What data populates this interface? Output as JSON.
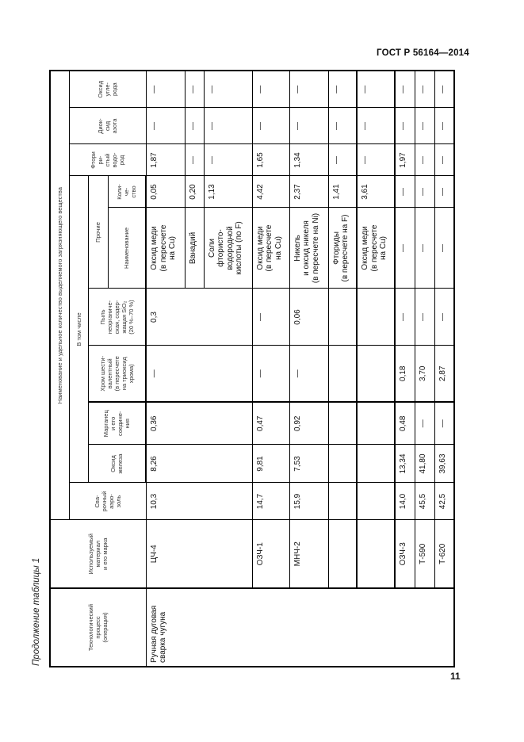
{
  "page": {
    "standard": "ГОСТ Р 56164—2014",
    "page_number": "11",
    "caption": "Продолжение таблицы 1"
  },
  "header": {
    "process": "Технологический\nпроцесс\n(операция)",
    "material": "Используемый\nматериал\nи его марка",
    "group": "Наименование и удельное количество выделяемого загрязняющего вещества",
    "aerosol": "Сва-\nрочный\nаэро-\nзоль",
    "including": "В том числе",
    "iron_oxide": "Оксид\nжелеза",
    "manganese": "Марганец\nи его\nсоедине-\nния",
    "chromium": "Хром шести-\nвалентный\n(в пересчете\nна триоксид\nхрома)",
    "dust": "Пыль\nнеорганиче-\nская, содер-\nжащая SiO₂\n(20 %–70 %)",
    "other": "Прочие",
    "other_name": "Наименование",
    "other_qty": "Коли-\nче-\nство",
    "hf": "Фтори\nри-\nстый\nводо-\nрод",
    "no2": "Диок-\nсид\nазота",
    "co": "Оксид\nугле-\nрода"
  },
  "rows": [
    {
      "process": "Ручная дуговая\nсварка чугуна",
      "material": "ЦЧ-4",
      "aerosol": "10,3",
      "iron_oxide": "8,26",
      "manganese": "0,36",
      "chromium": "—",
      "dust": "0,3",
      "other_name": "Оксид меди\n(в пересчете\nна Cu)",
      "other_qty": "0,05",
      "hf": "1,87",
      "no2": "—",
      "co": "—"
    },
    {
      "other_name": "Ванадий",
      "other_qty": "0,20",
      "hf": "—",
      "no2": "—",
      "co": "—"
    },
    {
      "other_name": "Соли\nфтористо-\nводородной\nкислоты (по F)",
      "other_qty": "1,13",
      "hf": "—",
      "no2": "—",
      "co": "—"
    },
    {
      "material": "ОЗЧ-1",
      "aerosol": "14,7",
      "iron_oxide": "9,81",
      "manganese": "0,47",
      "chromium": "—",
      "dust": "—",
      "other_name": "Оксид меди\n(в пересчете\nна Cu)",
      "other_qty": "4,42",
      "hf": "1,65",
      "no2": "—",
      "co": "—"
    },
    {
      "material": "МНЧ-2",
      "aerosol": "15,9",
      "iron_oxide": "7,53",
      "manganese": "0,92",
      "chromium": "—",
      "dust": "0,06",
      "other_name": "Никель\nи оксид никеля\n(в пересчете на Ni)",
      "other_qty": "2,37",
      "hf": "1,34",
      "no2": "—",
      "co": "—"
    },
    {
      "material": "",
      "aerosol": "",
      "iron_oxide": "",
      "manganese": "",
      "chromium": "",
      "dust": "",
      "other_name": "Фториды\n(в пересчете на F)",
      "other_qty": "1,41",
      "hf": "—",
      "no2": "—",
      "co": "—"
    },
    {
      "material": "",
      "aerosol": "",
      "iron_oxide": "",
      "manganese": "",
      "chromium": "",
      "dust": "",
      "other_name": "Оксид меди\n(в пересчете\nна Cu)",
      "other_qty": "3,61",
      "hf": "—",
      "no2": "—",
      "co": "—"
    },
    {
      "material": "ОЗЧ-3",
      "aerosol": "14,0",
      "iron_oxide": "13,34",
      "manganese": "0,48",
      "chromium": "0,18",
      "dust": "—",
      "other_name": "—",
      "other_qty": "—",
      "hf": "1,97",
      "no2": "—",
      "co": "—"
    },
    {
      "material": "Т-590",
      "aerosol": "45,5",
      "iron_oxide": "41,80",
      "manganese": "—",
      "chromium": "3,70",
      "dust": "—",
      "other_name": "—",
      "other_qty": "—",
      "hf": "—",
      "no2": "—",
      "co": "—"
    },
    {
      "material": "Т-620",
      "aerosol": "42,5",
      "iron_oxide": "39,63",
      "manganese": "—",
      "chromium": "2,87",
      "dust": "—",
      "other_name": "—",
      "other_qty": "—",
      "hf": "—",
      "no2": "—",
      "co": "—"
    }
  ]
}
